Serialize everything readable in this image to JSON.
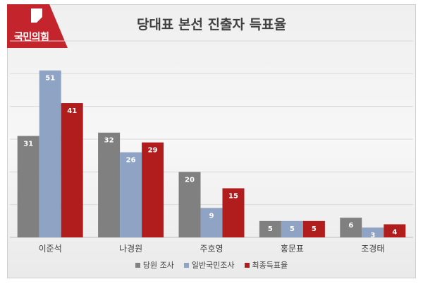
{
  "logo": {
    "text": "국민의힘",
    "color": "#c4242b"
  },
  "chart_data": {
    "type": "bar",
    "title": "당대표 본선 진출자 득표율",
    "xlabel": "",
    "ylabel": "",
    "categories": [
      "이준석",
      "나경원",
      "주호영",
      "홍문표",
      "조경태"
    ],
    "series": [
      {
        "name": "당원 조사",
        "color": "#808080",
        "values": [
          31,
          32,
          20,
          5,
          6
        ]
      },
      {
        "name": "일반국민조사",
        "color": "#8fa4c4",
        "values": [
          51,
          26,
          9,
          5,
          3
        ]
      },
      {
        "name": "최종득표율",
        "color": "#b11d1d",
        "values": [
          41,
          29,
          15,
          5,
          4
        ]
      }
    ],
    "ylim": [
      0,
      60
    ],
    "grid": true,
    "legend_position": "bottom",
    "data_labels": true
  }
}
